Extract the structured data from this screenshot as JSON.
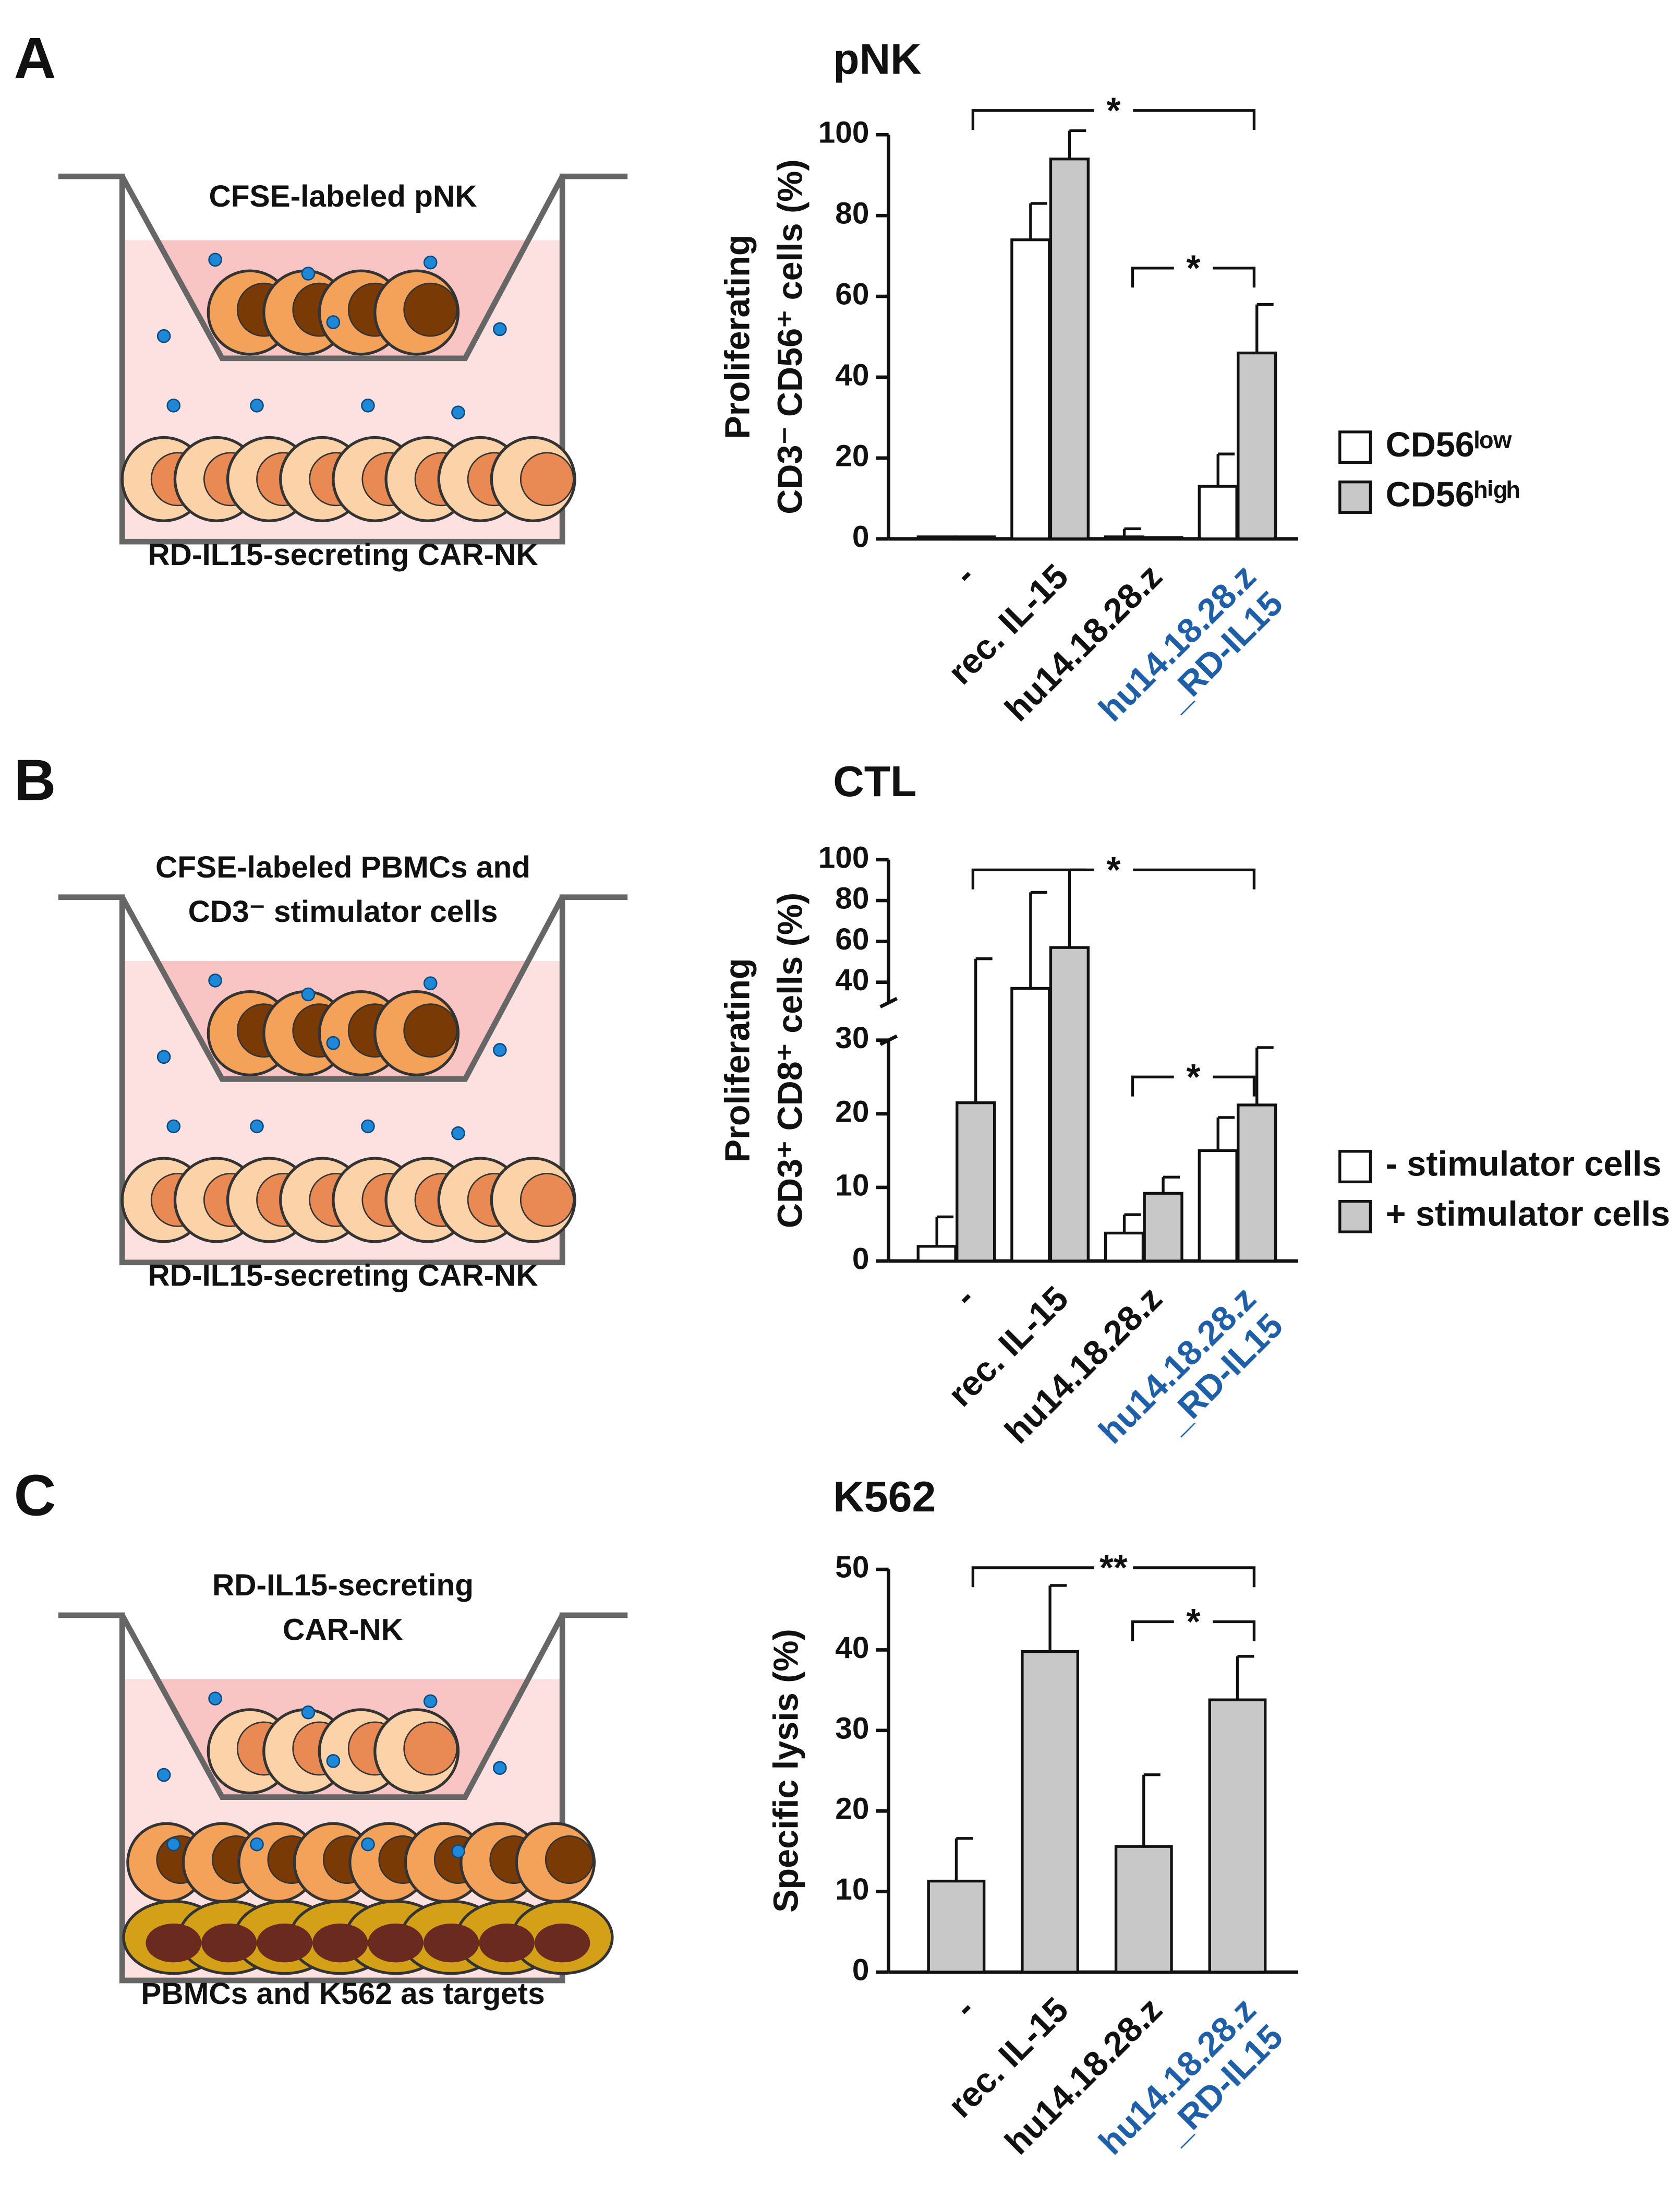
{
  "panels": [
    {
      "label": "A",
      "diagram_text": [
        "CFSE-labeled pNK"
      ],
      "diagram_caption": "RD-IL15-secreting CAR-NK"
    },
    {
      "label": "B",
      "diagram_text": [
        "CFSE-labeled PBMCs and",
        "CD3⁻ stimulator cells"
      ],
      "diagram_caption": "RD-IL15-secreting CAR-NK"
    },
    {
      "label": "C",
      "diagram_text": [
        "RD-IL15-secreting",
        "CAR-NK"
      ],
      "diagram_caption": "PBMCs and K562 as targets"
    }
  ],
  "chart_data": [
    {
      "type": "bar",
      "title": "pNK",
      "ylabel": [
        "Proliferating",
        "CD3⁻ CD56⁺ cells  (%)"
      ],
      "categories": [
        "-",
        "rec. IL-15",
        "hu14.18.28.z",
        "hu14.18.28.z\n_RD-IL15"
      ],
      "category_colors": [
        "#111111",
        "#111111",
        "#cc2a1e",
        "#1f5fa8"
      ],
      "series": [
        {
          "name": "CD56ˡᵒʷ",
          "color": "#ffffff",
          "values": [
            0.5,
            74,
            0.5,
            13
          ],
          "errors": [
            0,
            9,
            2,
            8
          ]
        },
        {
          "name": "CD56ʰⁱᵍʰ",
          "color": "#c8c8c8",
          "values": [
            0.5,
            94,
            0.3,
            46
          ],
          "errors": [
            0,
            7,
            0,
            12
          ]
        }
      ],
      "ylim": [
        0,
        100
      ],
      "yticks": [
        0,
        20,
        40,
        60,
        80,
        100
      ],
      "annotations": [
        {
          "text": "*",
          "from": 0,
          "to": 3,
          "y": 106
        },
        {
          "text": "*",
          "from": 2,
          "to": 3,
          "y": 67
        }
      ]
    },
    {
      "type": "bar",
      "title": "CTL",
      "ylabel": [
        "Proliferating",
        "CD3⁺ CD8⁺ cells  (%)"
      ],
      "categories": [
        "-",
        "rec. IL-15",
        "hu14.18.28.z",
        "hu14.18.28.z\n_RD-IL15"
      ],
      "category_colors": [
        "#111111",
        "#111111",
        "#cc2a1e",
        "#1f5fa8"
      ],
      "series": [
        {
          "name": "- stimulator cells",
          "color": "#ffffff",
          "values": [
            2,
            37,
            3.8,
            15
          ],
          "errors": [
            4,
            47,
            2.5,
            4.5
          ]
        },
        {
          "name": "+ stimulator cells",
          "color": "#c8c8c8",
          "values": [
            21.5,
            57,
            9.2,
            21.2
          ],
          "errors": [
            30,
            38,
            2.2,
            7.8
          ]
        }
      ],
      "ylim": [
        0,
        100
      ],
      "ysegments": [
        [
          0,
          30
        ],
        [
          30,
          100
        ]
      ],
      "yticks": [
        0,
        10,
        20,
        30,
        40,
        60,
        80,
        100
      ],
      "annotations": [
        {
          "text": "*",
          "from": 0,
          "to": 3,
          "y": 95
        },
        {
          "text": "*",
          "from": 2,
          "to": 3,
          "y": 25
        }
      ]
    },
    {
      "type": "bar",
      "title": "K562",
      "ylabel": "Specific lysis  (%)",
      "categories": [
        "-",
        "rec. IL-15",
        "hu14.18.28.z",
        "hu14.18.28.z\n_RD-IL15"
      ],
      "category_colors": [
        "#111111",
        "#111111",
        "#cc2a1e",
        "#1f5fa8"
      ],
      "series": [
        {
          "color": "#c8c8c8",
          "values": [
            11.3,
            39.8,
            15.6,
            33.8
          ],
          "errors": [
            5.3,
            8.2,
            8.9,
            5.4
          ]
        }
      ],
      "ylim": [
        0,
        50
      ],
      "yticks": [
        0,
        10,
        20,
        30,
        40,
        50
      ],
      "annotations": [
        {
          "text": "**",
          "from": 0,
          "to": 3,
          "y": 50.2
        },
        {
          "text": "*",
          "from": 2,
          "to": 3,
          "y": 43.5
        }
      ]
    }
  ]
}
